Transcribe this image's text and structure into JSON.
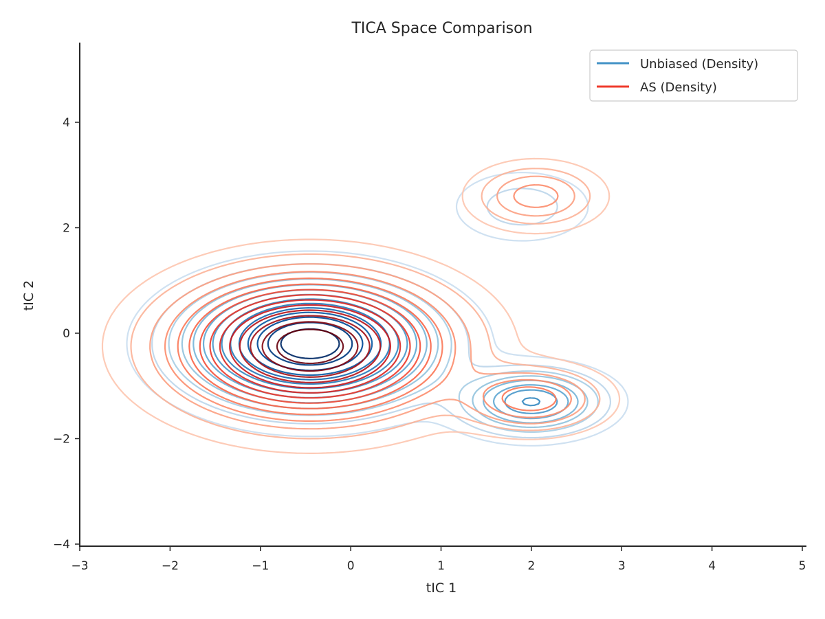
{
  "chart_data": {
    "type": "contour",
    "title": "TICA Space Comparison",
    "xlabel": "tIC 1",
    "ylabel": "tIC 2",
    "xlim": [
      -3,
      5
    ],
    "ylim": [
      -4,
      5.5
    ],
    "xticks": [
      -3,
      -2,
      -1,
      0,
      1,
      2,
      3,
      4,
      5
    ],
    "xtick_labels": [
      "−3",
      "−2",
      "−1",
      "0",
      "1",
      "2",
      "3",
      "4",
      "5"
    ],
    "yticks": [
      -4,
      -2,
      0,
      2,
      4
    ],
    "ytick_labels": [
      "−4",
      "−2",
      "0",
      "2",
      "4"
    ],
    "grid": false,
    "legend_position": "top-right",
    "series": [
      {
        "name": "Unbiased (Density)",
        "color": "#4292c6",
        "colormap": "Blues",
        "modes": [
          {
            "center": [
              -0.45,
              -0.2
            ],
            "weight": 0.85,
            "spread": [
              0.75,
              0.65
            ]
          },
          {
            "center": [
              2.0,
              -1.3
            ],
            "weight": 0.12,
            "spread": [
              0.45,
              0.35
            ]
          },
          {
            "center": [
              1.9,
              2.4
            ],
            "weight": 0.03,
            "spread": [
              0.45,
              0.4
            ]
          }
        ]
      },
      {
        "name": "AS (Density)",
        "color": "#ef3b2c",
        "colormap": "Reds",
        "modes": [
          {
            "center": [
              -0.45,
              -0.25
            ],
            "weight": 0.9,
            "spread": [
              0.85,
              0.75
            ]
          },
          {
            "center": [
              2.0,
              -1.25
            ],
            "weight": 0.06,
            "spread": [
              0.45,
              0.35
            ]
          },
          {
            "center": [
              2.05,
              2.6
            ],
            "weight": 0.04,
            "spread": [
              0.4,
              0.35
            ]
          }
        ]
      }
    ]
  }
}
